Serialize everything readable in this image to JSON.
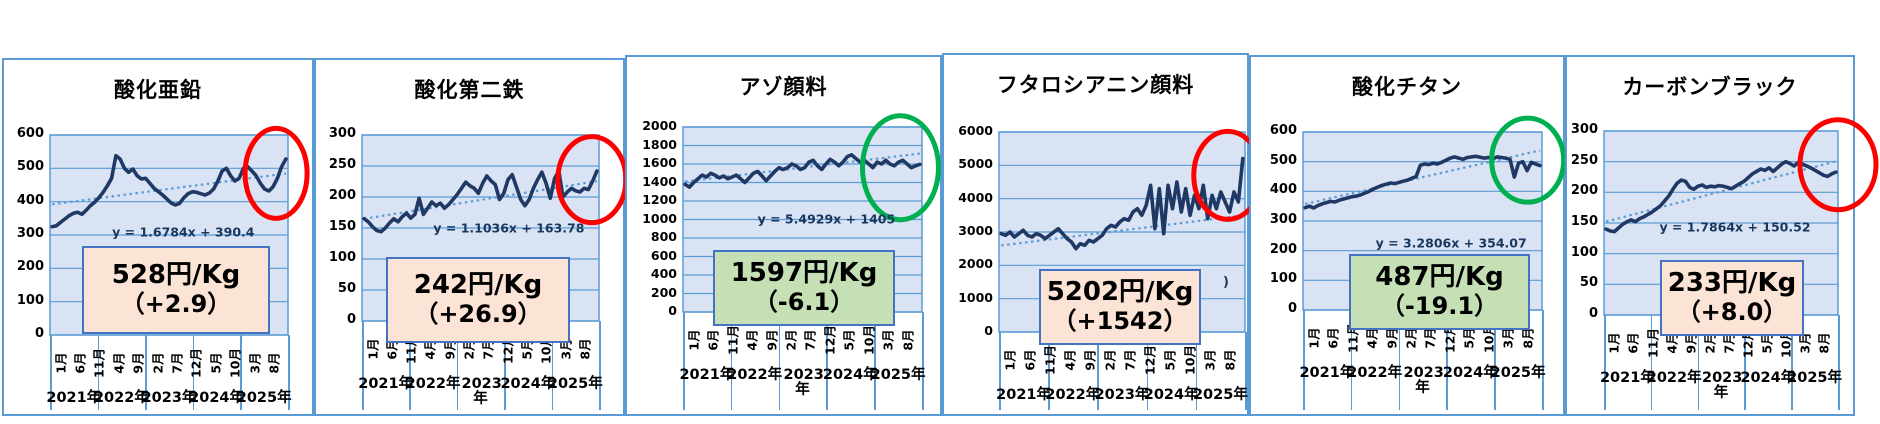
{
  "page": {
    "background": "#ffffff"
  },
  "colors": {
    "panel_border": "#5b9bd5",
    "plot_bg": "#dae3f3",
    "grid": "#5b9bd5",
    "series_line": "#1f3864",
    "trendline": "#5b9bd5",
    "box_border": "#4472c4",
    "box_peach": "#fbe3d5",
    "box_green": "#c5e0b4",
    "circle_red": "#ff0000",
    "circle_green": "#00b050"
  },
  "axis": {
    "months": [
      "1月",
      "6月",
      "11月",
      "4月",
      "9月",
      "2月",
      "7月",
      "12月",
      "5月",
      "10月",
      "3月",
      "8月"
    ],
    "years": [
      "2021年",
      "2022年",
      "2023年",
      "2024年",
      "2025年"
    ]
  },
  "chart_data": [
    {
      "type": "line",
      "title": "酸化亜鉛",
      "equation": "y = 1.6784x + 390.4",
      "price": "528円/Kg",
      "change": "（+2.9）",
      "box_color": "#fbe3d5",
      "circle_color": "#ff0000",
      "ylim": [
        0,
        600
      ],
      "yticks": [
        0,
        100,
        200,
        300,
        400,
        500,
        600
      ],
      "trend": {
        "slope": 1.6784,
        "intercept": 390.4
      },
      "values": [
        325,
        328,
        338,
        348,
        358,
        365,
        368,
        362,
        374,
        388,
        398,
        412,
        428,
        448,
        470,
        538,
        528,
        500,
        488,
        498,
        478,
        468,
        470,
        455,
        440,
        430,
        420,
        408,
        396,
        390,
        395,
        412,
        424,
        430,
        428,
        424,
        420,
        426,
        438,
        462,
        492,
        500,
        478,
        462,
        470,
        500,
        505,
        492,
        478,
        455,
        438,
        432,
        445,
        470,
        505,
        528
      ]
    },
    {
      "type": "line",
      "title": "酸化第二鉄",
      "equation": "y = 1.1036x + 163.78",
      "price": "242円/Kg",
      "change": "（+26.9）",
      "box_color": "#fbe3d5",
      "circle_color": "#ff0000",
      "ylim": [
        0,
        300
      ],
      "yticks": [
        0,
        50,
        100,
        150,
        200,
        250,
        300
      ],
      "trend": {
        "slope": 1.1036,
        "intercept": 163.78
      },
      "values": [
        165,
        160,
        152,
        146,
        144,
        150,
        158,
        165,
        160,
        168,
        174,
        166,
        172,
        198,
        172,
        182,
        192,
        186,
        190,
        182,
        188,
        196,
        204,
        214,
        224,
        218,
        214,
        206,
        222,
        234,
        226,
        220,
        196,
        206,
        228,
        236,
        216,
        196,
        186,
        196,
        214,
        228,
        240,
        222,
        198,
        230,
        242,
        200,
        208,
        214,
        210,
        208,
        214,
        212,
        226,
        242
      ]
    },
    {
      "type": "line",
      "title": "アゾ顔料",
      "equation": "y = 5.4929x + 1405",
      "price": "1597円/Kg",
      "change": "（-6.1）",
      "box_color": "#c5e0b4",
      "circle_color": "#00b050",
      "ylim": [
        0,
        2000
      ],
      "yticks": [
        0,
        200,
        400,
        600,
        800,
        1000,
        1200,
        1400,
        1600,
        1800,
        2000
      ],
      "trend": {
        "slope": 5.4929,
        "intercept": 1405
      },
      "values": [
        1380,
        1350,
        1400,
        1440,
        1480,
        1460,
        1500,
        1480,
        1450,
        1470,
        1440,
        1460,
        1480,
        1440,
        1400,
        1450,
        1500,
        1520,
        1470,
        1420,
        1470,
        1520,
        1560,
        1540,
        1560,
        1600,
        1580,
        1540,
        1560,
        1620,
        1640,
        1580,
        1540,
        1600,
        1650,
        1620,
        1580,
        1620,
        1680,
        1700,
        1660,
        1620,
        1640,
        1600,
        1560,
        1620,
        1600,
        1640,
        1600,
        1580,
        1620,
        1640,
        1600,
        1560,
        1580,
        1597
      ]
    },
    {
      "type": "line",
      "title": "フタロシアニン顔料",
      "equation": null,
      "equation_remnant": ")",
      "price": "5202円/Kg",
      "change": "（+1542）",
      "box_color": "#fbe3d5",
      "circle_color": "#ff0000",
      "ylim": [
        0,
        6000
      ],
      "yticks": [
        0,
        1000,
        2000,
        3000,
        4000,
        5000,
        6000
      ],
      "trend": {
        "slope": 16.4,
        "intercept": 2580
      },
      "values": [
        2950,
        2900,
        3000,
        2850,
        2950,
        3050,
        2900,
        2850,
        2950,
        2900,
        2800,
        2900,
        3000,
        3100,
        2950,
        2800,
        2700,
        2500,
        2650,
        2600,
        2750,
        2700,
        2800,
        2900,
        3100,
        3200,
        3150,
        3300,
        3400,
        3350,
        3600,
        3700,
        3500,
        3800,
        4400,
        3100,
        4300,
        2950,
        4400,
        3700,
        4500,
        3600,
        4300,
        3500,
        4100,
        3700,
        4400,
        3400,
        4100,
        3700,
        4200,
        3900,
        3600,
        4200,
        3900,
        5202
      ]
    },
    {
      "type": "line",
      "title": "酸化チタン",
      "equation": "y = 3.2806x + 354.07",
      "price": "487円/Kg",
      "change": "（-19.1）",
      "box_color": "#c5e0b4",
      "circle_color": "#00b050",
      "ylim": [
        0,
        600
      ],
      "yticks": [
        0,
        100,
        200,
        300,
        400,
        500,
        600
      ],
      "trend": {
        "slope": 3.2806,
        "intercept": 354.07
      },
      "values": [
        345,
        350,
        344,
        352,
        358,
        362,
        366,
        364,
        370,
        374,
        378,
        382,
        384,
        388,
        394,
        400,
        408,
        414,
        420,
        424,
        428,
        426,
        430,
        434,
        438,
        444,
        450,
        488,
        492,
        490,
        495,
        492,
        498,
        505,
        512,
        516,
        512,
        508,
        514,
        516,
        518,
        515,
        512,
        514,
        510,
        516,
        514,
        512,
        508,
        448,
        495,
        500,
        470,
        498,
        492,
        487
      ]
    },
    {
      "type": "line",
      "title": "カーボンブラック",
      "equation": "y = 1.7864x + 150.52",
      "price": "233円/Kg",
      "change": "（+8.0）",
      "box_color": "#fbe3d5",
      "circle_color": "#ff0000",
      "ylim": [
        0,
        300
      ],
      "yticks": [
        0,
        50,
        100,
        150,
        200,
        250,
        300
      ],
      "trend": {
        "slope": 1.7864,
        "intercept": 150.52
      },
      "values": [
        140,
        137,
        136,
        142,
        148,
        152,
        155,
        152,
        157,
        160,
        164,
        168,
        173,
        178,
        186,
        194,
        205,
        215,
        220,
        218,
        208,
        205,
        210,
        212,
        208,
        210,
        209,
        211,
        210,
        208,
        206,
        210,
        214,
        218,
        224,
        230,
        234,
        238,
        236,
        240,
        234,
        240,
        246,
        250,
        247,
        243,
        249,
        246,
        243,
        240,
        236,
        232,
        228,
        226,
        230,
        233
      ]
    }
  ]
}
